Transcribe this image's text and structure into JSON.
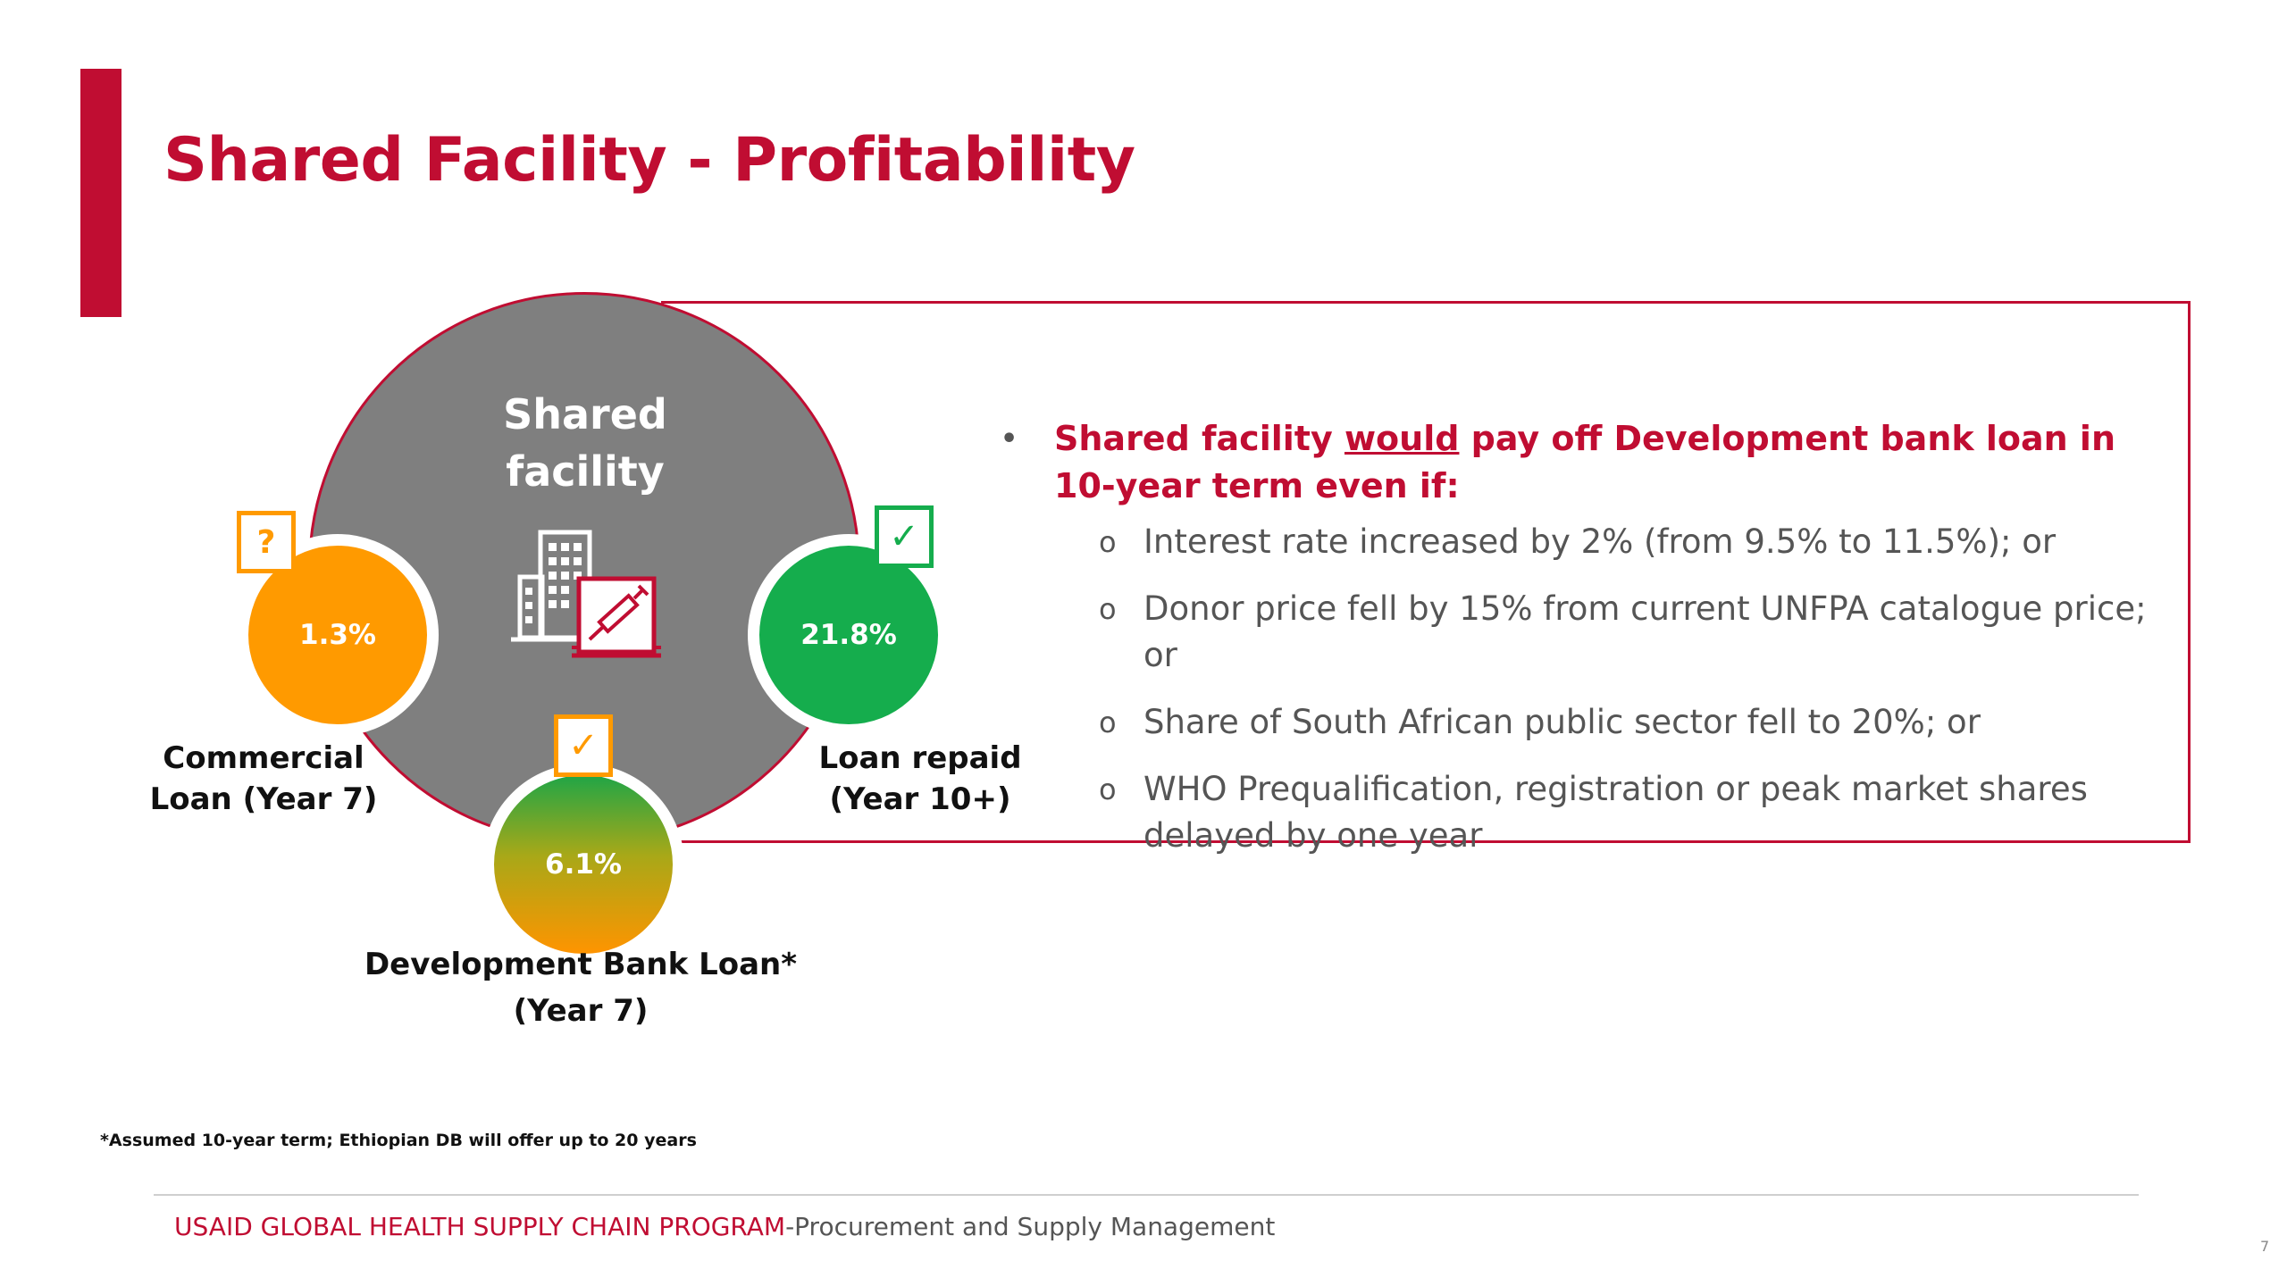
{
  "slide": {
    "title": "Shared Facility - Profitability"
  },
  "graphic": {
    "center_label": "Shared facility",
    "icon": "building-with-syringe-icon",
    "circles": [
      {
        "value": "1.3%",
        "badge": "?",
        "caption": "Commercial Loan (Year 7)"
      },
      {
        "value": "21.8%",
        "badge": "✓",
        "caption": "Loan repaid (Year 10+)"
      },
      {
        "value": "6.1%",
        "badge": "✓",
        "caption": "Development Bank Loan* (Year 7)"
      }
    ]
  },
  "callout": {
    "bullet": "•",
    "heading_pre": "Shared facility ",
    "heading_underlined": "would",
    "heading_post": " pay off Development bank loan in 10-year term even if:",
    "sub_marker": "o",
    "items": [
      "Interest rate increased by 2% (from 9.5% to 11.5%); or",
      "Donor price fell by 15% from current UNFPA catalogue price; or",
      "Share of South African public sector fell to 20%; or",
      "WHO Prequalification, registration or peak market shares delayed by one year"
    ]
  },
  "footnote": "*Assumed 10-year term; Ethiopian DB will offer up to 20 years",
  "footer": {
    "brand": "USAID GLOBAL HEALTH SUPPLY CHAIN PROGRAM",
    "tagline": "-Procurement and Supply Management"
  },
  "page_number": "7",
  "colors": {
    "accent": "#c00d32",
    "orange": "#ff9a00",
    "green": "#15ad4d",
    "gray": "#7f7f7f"
  }
}
